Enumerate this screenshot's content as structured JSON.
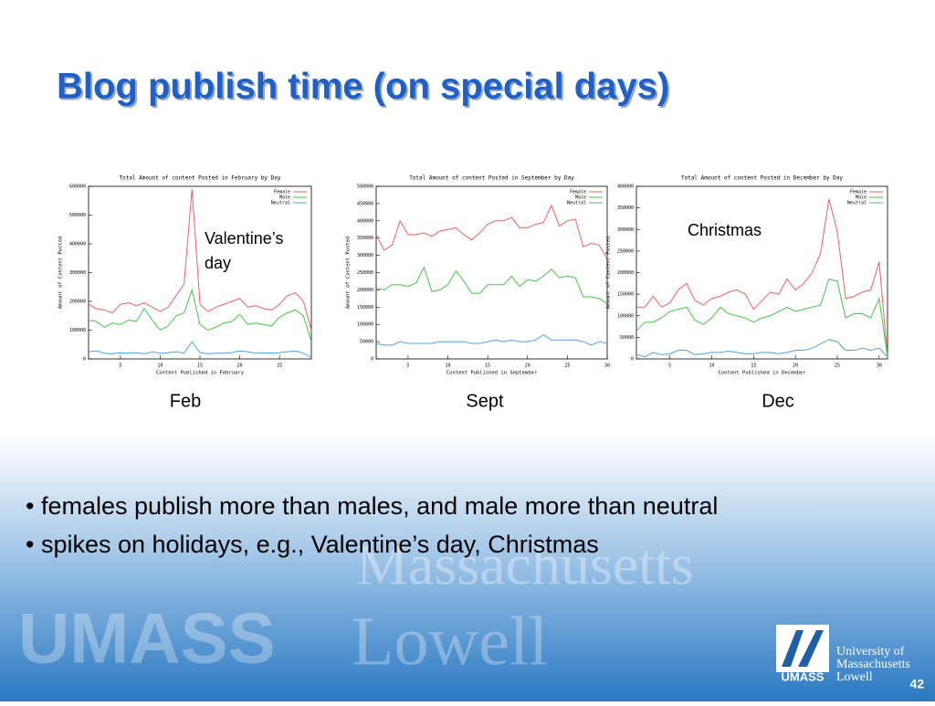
{
  "title": "Blog publish time (on special days)",
  "bullets": [
    "• females publish more than males, and male more than neutral",
    "• spikes on holidays, e.g., Valentine’s day, Christmas"
  ],
  "watermark": [
    "Massachusetts",
    "UMASS",
    "Lowell"
  ],
  "logo": {
    "lines": [
      "University of",
      "Massachusetts",
      "Lowell"
    ],
    "mark": "UMASS"
  },
  "page_number": "42",
  "chart_data": [
    {
      "type": "line",
      "title": "Total Amount of content Posted in February by Day",
      "xlabel": "Content Published in February",
      "ylabel": "Amount of Content Posted",
      "caption": "Feb",
      "annotation": [
        "Valentine’s",
        "day"
      ],
      "legend": "upper right",
      "x": [
        1,
        2,
        3,
        4,
        5,
        6,
        7,
        8,
        9,
        10,
        11,
        12,
        13,
        14,
        15,
        16,
        17,
        18,
        19,
        20,
        21,
        22,
        23,
        24,
        25,
        26,
        27,
        28,
        29
      ],
      "xlim": [
        1,
        29
      ],
      "xticks": [
        5,
        10,
        15,
        20,
        25
      ],
      "ylim": [
        0,
        600000
      ],
      "yticks": [
        0,
        100000,
        200000,
        300000,
        400000,
        500000,
        600000
      ],
      "series": [
        {
          "name": "Female",
          "color": "#f06060",
          "values": [
            190000,
            175000,
            170000,
            160000,
            190000,
            195000,
            185000,
            195000,
            180000,
            165000,
            180000,
            220000,
            260000,
            590000,
            190000,
            165000,
            180000,
            190000,
            200000,
            210000,
            180000,
            185000,
            175000,
            170000,
            190000,
            220000,
            230000,
            200000,
            100000
          ]
        },
        {
          "name": "Male",
          "color": "#40c840",
          "values": [
            135000,
            130000,
            110000,
            125000,
            120000,
            135000,
            130000,
            175000,
            135000,
            100000,
            115000,
            150000,
            160000,
            240000,
            120000,
            100000,
            110000,
            125000,
            130000,
            155000,
            120000,
            125000,
            120000,
            115000,
            145000,
            160000,
            170000,
            150000,
            60000
          ]
        },
        {
          "name": "Neutral",
          "color": "#50a0f0",
          "values": [
            25000,
            28000,
            20000,
            18000,
            22000,
            20000,
            22000,
            18000,
            25000,
            20000,
            22000,
            25000,
            20000,
            60000,
            22000,
            18000,
            20000,
            20000,
            22000,
            28000,
            25000,
            20000,
            22000,
            20000,
            22000,
            25000,
            28000,
            20000,
            5000
          ]
        }
      ]
    },
    {
      "type": "line",
      "title": "Total Amount of content Posted in September by Day",
      "xlabel": "Content Published in September",
      "ylabel": "Amount of Content Posted",
      "caption": "Sept",
      "legend": "upper right",
      "x": [
        1,
        2,
        3,
        4,
        5,
        6,
        7,
        8,
        9,
        10,
        11,
        12,
        13,
        14,
        15,
        16,
        17,
        18,
        19,
        20,
        21,
        22,
        23,
        24,
        25,
        26,
        27,
        28,
        29,
        30
      ],
      "xlim": [
        1,
        30
      ],
      "xticks": [
        5,
        10,
        15,
        20,
        25,
        30
      ],
      "ylim": [
        0,
        500000
      ],
      "yticks": [
        0,
        50000,
        100000,
        150000,
        200000,
        250000,
        300000,
        350000,
        400000,
        450000,
        500000
      ],
      "series": [
        {
          "name": "Female",
          "color": "#f06060",
          "values": [
            360000,
            315000,
            330000,
            400000,
            360000,
            360000,
            365000,
            355000,
            370000,
            375000,
            380000,
            360000,
            345000,
            365000,
            390000,
            400000,
            400000,
            410000,
            380000,
            380000,
            390000,
            395000,
            445000,
            385000,
            400000,
            405000,
            325000,
            335000,
            330000,
            290000
          ]
        },
        {
          "name": "Male",
          "color": "#40c840",
          "values": [
            205000,
            200000,
            215000,
            215000,
            210000,
            220000,
            265000,
            195000,
            200000,
            215000,
            255000,
            225000,
            190000,
            190000,
            215000,
            215000,
            215000,
            240000,
            210000,
            230000,
            225000,
            240000,
            260000,
            235000,
            240000,
            235000,
            180000,
            180000,
            175000,
            160000
          ]
        },
        {
          "name": "Neutral",
          "color": "#50a0f0",
          "values": [
            45000,
            40000,
            40000,
            50000,
            45000,
            45000,
            45000,
            45000,
            50000,
            50000,
            50000,
            50000,
            45000,
            45000,
            50000,
            55000,
            50000,
            55000,
            50000,
            50000,
            55000,
            70000,
            55000,
            55000,
            55000,
            55000,
            50000,
            40000,
            50000,
            45000
          ]
        }
      ]
    },
    {
      "type": "line",
      "title": "Total Amount of content Posted in December by Day",
      "xlabel": "Content Published in December",
      "ylabel": "Amount of Content Posted",
      "caption": "Dec",
      "annotation": [
        "Christmas"
      ],
      "legend": "upper right",
      "x": [
        1,
        2,
        3,
        4,
        5,
        6,
        7,
        8,
        9,
        10,
        11,
        12,
        13,
        14,
        15,
        16,
        17,
        18,
        19,
        20,
        21,
        22,
        23,
        24,
        25,
        26,
        27,
        28,
        29,
        30,
        31
      ],
      "xlim": [
        1,
        31
      ],
      "xticks": [
        5,
        10,
        15,
        20,
        25,
        30
      ],
      "ylim": [
        0,
        400000
      ],
      "yticks": [
        0,
        50000,
        100000,
        150000,
        200000,
        250000,
        300000,
        350000,
        400000
      ],
      "series": [
        {
          "name": "Female",
          "color": "#f06060",
          "values": [
            120000,
            120000,
            145000,
            120000,
            130000,
            160000,
            175000,
            135000,
            125000,
            140000,
            145000,
            155000,
            160000,
            150000,
            115000,
            135000,
            155000,
            150000,
            185000,
            160000,
            175000,
            200000,
            245000,
            370000,
            295000,
            140000,
            145000,
            155000,
            160000,
            225000,
            5000
          ]
        },
        {
          "name": "Male",
          "color": "#40c840",
          "values": [
            65000,
            85000,
            85000,
            95000,
            110000,
            115000,
            120000,
            90000,
            80000,
            95000,
            120000,
            105000,
            100000,
            95000,
            85000,
            95000,
            100000,
            110000,
            120000,
            110000,
            115000,
            120000,
            125000,
            185000,
            180000,
            95000,
            105000,
            105000,
            95000,
            140000,
            5000
          ]
        },
        {
          "name": "Neutral",
          "color": "#50a0f0",
          "values": [
            10000,
            5000,
            15000,
            10000,
            12000,
            20000,
            20000,
            10000,
            12000,
            15000,
            15000,
            18000,
            15000,
            12000,
            12000,
            15000,
            15000,
            12000,
            15000,
            20000,
            20000,
            25000,
            35000,
            45000,
            40000,
            20000,
            20000,
            25000,
            20000,
            25000,
            5000
          ]
        }
      ]
    }
  ]
}
